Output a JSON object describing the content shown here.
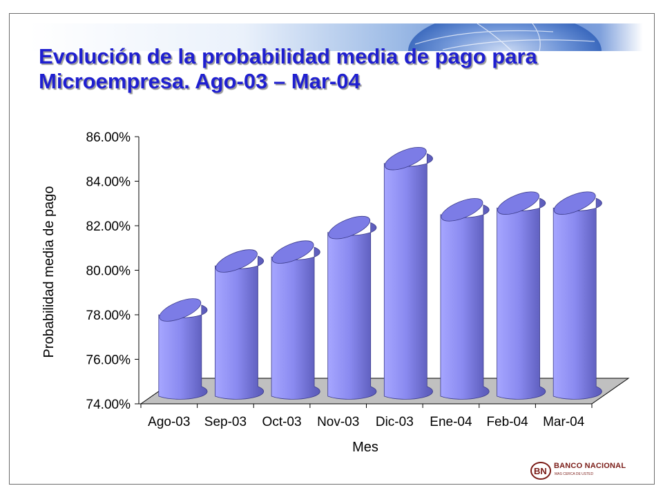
{
  "title": {
    "line1": "Evolución de la probabilidad media de pago para",
    "line2": "Microempresa. Ago-03 – Mar-04"
  },
  "logo": {
    "name": "BANCO NACIONAL",
    "tagline": "MAS CERCA DE USTED"
  },
  "colors": {
    "title": "#1f1fd0",
    "bar_light": "#a6a6ff",
    "bar_mid": "#8484ee",
    "bar_dark": "#5a5ab8",
    "floor": "#c0c0c0",
    "logo": "#7a1b16"
  },
  "chart_data": {
    "type": "bar",
    "style": "3d-cylinder",
    "xlabel": "Mes",
    "ylabel": "Probabilidad media de pago",
    "categories": [
      "Ago-03",
      "Sep-03",
      "Oct-03",
      "Nov-03",
      "Dic-03",
      "Ene-04",
      "Feb-04",
      "Mar-04"
    ],
    "values": [
      78.0,
      80.2,
      80.6,
      81.7,
      84.8,
      82.5,
      82.8,
      82.8
    ],
    "ylim": [
      74,
      86
    ],
    "yticks": [
      "74.00%",
      "76.00%",
      "78.00%",
      "80.00%",
      "82.00%",
      "84.00%",
      "86.00%"
    ],
    "grid": false,
    "legend": "none"
  }
}
